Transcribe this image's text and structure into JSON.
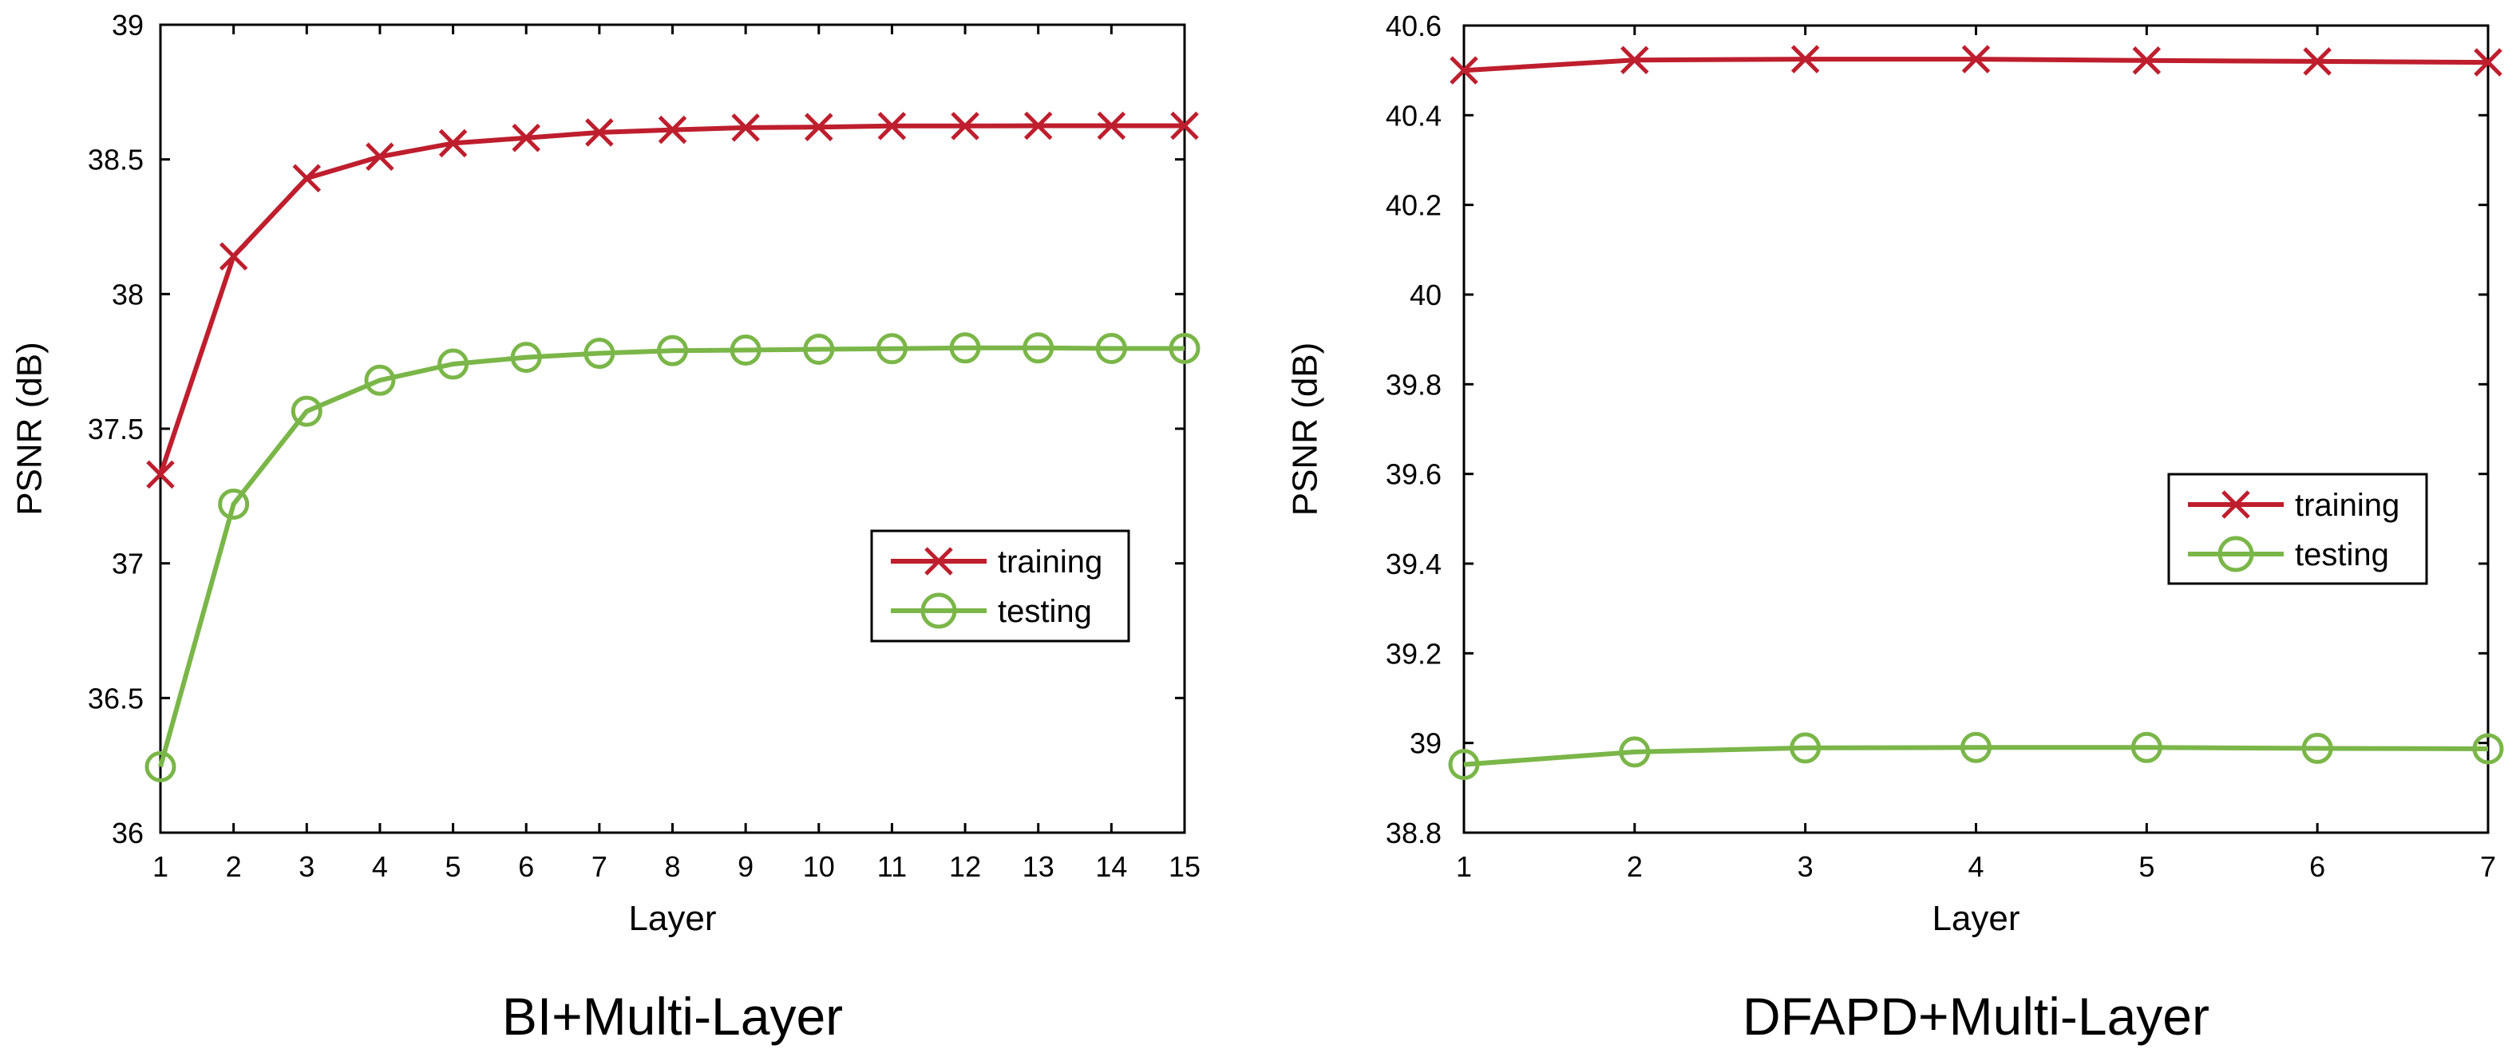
{
  "colors": {
    "training": "#BE1E2D",
    "testing": "#7AB648",
    "axes": "#000000",
    "background": "#FFFFFF"
  },
  "chart_data": [
    {
      "type": "line",
      "title": "BI+Multi-Layer",
      "xlabel": "Layer",
      "ylabel": "PSNR (dB)",
      "xlim": [
        1,
        15
      ],
      "ylim": [
        36,
        39
      ],
      "xticks": [
        1,
        2,
        3,
        4,
        5,
        6,
        7,
        8,
        9,
        10,
        11,
        12,
        13,
        14,
        15
      ],
      "yticks": [
        36,
        36.5,
        37,
        37.5,
        38,
        38.5,
        39
      ],
      "ytick_labels": [
        "36",
        "36.5",
        "37",
        "37.5",
        "38",
        "38.5",
        "39"
      ],
      "grid": false,
      "legend_position": "center-right",
      "x": [
        1,
        2,
        3,
        4,
        5,
        6,
        7,
        8,
        9,
        10,
        11,
        12,
        13,
        14,
        15
      ],
      "series": [
        {
          "name": "training",
          "marker": "x",
          "color": "#BE1E2D",
          "values": [
            37.33,
            38.14,
            38.43,
            38.51,
            38.56,
            38.58,
            38.6,
            38.61,
            38.618,
            38.62,
            38.624,
            38.624,
            38.625,
            38.625,
            38.625
          ]
        },
        {
          "name": "testing",
          "marker": "o",
          "color": "#7AB648",
          "values": [
            36.245,
            37.22,
            37.565,
            37.68,
            37.74,
            37.765,
            37.78,
            37.79,
            37.792,
            37.795,
            37.797,
            37.8,
            37.8,
            37.798,
            37.798
          ]
        }
      ]
    },
    {
      "type": "line",
      "title": "DFAPD+Multi-Layer",
      "xlabel": "Layer",
      "ylabel": "PSNR (dB)",
      "xlim": [
        1,
        7
      ],
      "ylim": [
        38.8,
        40.6
      ],
      "xticks": [
        1,
        2,
        3,
        4,
        5,
        6,
        7
      ],
      "yticks": [
        38.8,
        39,
        39.2,
        39.4,
        39.6,
        39.8,
        40,
        40.2,
        40.4,
        40.6
      ],
      "ytick_labels": [
        "38.8",
        "39",
        "39.2",
        "39.4",
        "39.6",
        "39.8",
        "40",
        "40.2",
        "40.4",
        "40.6"
      ],
      "grid": false,
      "legend_position": "center-right",
      "x": [
        1,
        2,
        3,
        4,
        5,
        6,
        7
      ],
      "series": [
        {
          "name": "training",
          "marker": "x",
          "color": "#BE1E2D",
          "values": [
            40.5,
            40.523,
            40.525,
            40.525,
            40.522,
            40.52,
            40.518
          ]
        },
        {
          "name": "testing",
          "marker": "o",
          "color": "#7AB648",
          "values": [
            38.952,
            38.98,
            38.989,
            38.99,
            38.99,
            38.988,
            38.987
          ]
        }
      ]
    }
  ]
}
